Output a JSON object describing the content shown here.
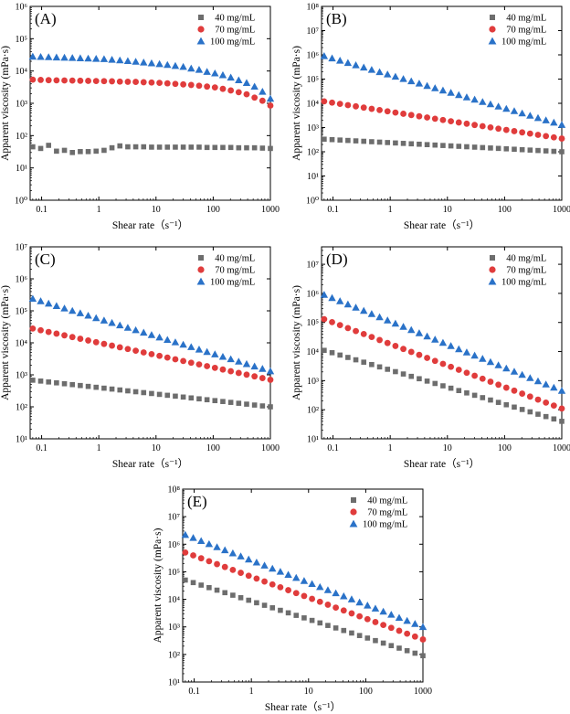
{
  "colors": {
    "s40": "#6d6d6d",
    "s70": "#e03c3c",
    "s100": "#2a72c8"
  },
  "chart_data": [
    {
      "type": "scatter",
      "panel_label": "(A)",
      "xlabel": "Shear rate（s⁻¹）",
      "ylabel": "Apparent viscosity (mPa·s)",
      "xscale": "log",
      "yscale": "log",
      "xlim": [
        0.063,
        1000
      ],
      "ylim_exp": [
        0,
        6
      ],
      "xticks": [
        {
          "v": 0.1,
          "label": "0.1"
        },
        {
          "v": 1,
          "label": "1"
        },
        {
          "v": 10,
          "label": "10"
        },
        {
          "v": 100,
          "label": "100"
        },
        {
          "v": 1000,
          "label": "1000"
        }
      ],
      "x_range": [
        0.07,
        1000
      ],
      "n_points": 31,
      "series": [
        {
          "name": "40 mg/mL",
          "marker": "square",
          "values": [
            45,
            40,
            50,
            33,
            35,
            30,
            32,
            32,
            33,
            35,
            42,
            48,
            45,
            45,
            45,
            44,
            44,
            44,
            44,
            44,
            44,
            44,
            43,
            43,
            43,
            43,
            42,
            42,
            42,
            41,
            40
          ]
        },
        {
          "name": "70 mg/mL",
          "marker": "circle",
          "values": [
            5400,
            5300,
            5200,
            5150,
            5100,
            5050,
            5000,
            4950,
            4900,
            4850,
            4800,
            4700,
            4650,
            4600,
            4500,
            4400,
            4300,
            4150,
            4000,
            3850,
            3700,
            3500,
            3300,
            3100,
            2800,
            2500,
            2200,
            1900,
            1500,
            1200,
            850
          ]
        },
        {
          "name": "100 mg/mL",
          "marker": "triangle",
          "values": [
            28000,
            27500,
            27000,
            26500,
            26000,
            25500,
            25000,
            24500,
            24000,
            23500,
            22500,
            21500,
            20500,
            19500,
            18500,
            17500,
            16500,
            15500,
            14500,
            13500,
            12000,
            11000,
            9500,
            8500,
            7500,
            6300,
            5200,
            4300,
            3300,
            2300,
            1400
          ]
        }
      ]
    },
    {
      "type": "scatter",
      "panel_label": "(B)",
      "xlabel": "Shear rate（s⁻¹）",
      "ylabel": "Apparent viscosity (mPa·s)",
      "xscale": "log",
      "yscale": "log",
      "xlim": [
        0.063,
        1000
      ],
      "ylim_exp": [
        0,
        8
      ],
      "xticks": [
        {
          "v": 0.1,
          "label": "0.1"
        },
        {
          "v": 1,
          "label": "1"
        },
        {
          "v": 10,
          "label": "10"
        },
        {
          "v": 100,
          "label": "100"
        },
        {
          "v": 1000,
          "label": "1000"
        }
      ],
      "x_range": [
        0.07,
        1000
      ],
      "n_points": 31,
      "power_law": true,
      "series": [
        {
          "name": "40 mg/mL",
          "marker": "square",
          "start": 330,
          "end": 100
        },
        {
          "name": "70 mg/mL",
          "marker": "circle",
          "start": 12000,
          "end": 350
        },
        {
          "name": "100 mg/mL",
          "marker": "triangle",
          "start": 900000,
          "end": 1300
        }
      ]
    },
    {
      "type": "scatter",
      "panel_label": "(C)",
      "xlabel": "Shear rate（s⁻¹）",
      "ylabel": "Apparent viscosity (mPa·s)",
      "xscale": "log",
      "yscale": "log",
      "xlim": [
        0.063,
        1000
      ],
      "ylim_exp": [
        1,
        7
      ],
      "xticks": [
        {
          "v": 0.1,
          "label": "0.1"
        },
        {
          "v": 1,
          "label": "1"
        },
        {
          "v": 10,
          "label": "10"
        },
        {
          "v": 100,
          "label": "100"
        },
        {
          "v": 1000,
          "label": "1000"
        }
      ],
      "x_range": [
        0.07,
        1000
      ],
      "n_points": 31,
      "power_law": true,
      "series": [
        {
          "name": "40 mg/mL",
          "marker": "square",
          "start": 680,
          "end": 100
        },
        {
          "name": "70 mg/mL",
          "marker": "circle",
          "start": 28000,
          "end": 700
        },
        {
          "name": "100 mg/mL",
          "marker": "triangle",
          "start": 240000,
          "end": 1300
        }
      ]
    },
    {
      "type": "scatter",
      "panel_label": "(D)",
      "xlabel": "Shear rate（s⁻¹）",
      "ylabel": "Apparent viscosity (mPa·s)",
      "xscale": "log",
      "yscale": "log",
      "xlim": [
        0.063,
        1000
      ],
      "ylim_exp": [
        1,
        7.6
      ],
      "xticks": [
        {
          "v": 0.1,
          "label": "0.1"
        },
        {
          "v": 1,
          "label": "1"
        },
        {
          "v": 10,
          "label": "10"
        },
        {
          "v": 100,
          "label": "100"
        },
        {
          "v": 1000,
          "label": "1000"
        }
      ],
      "x_range": [
        0.07,
        1000
      ],
      "n_points": 31,
      "power_law": true,
      "series": [
        {
          "name": "40 mg/mL",
          "marker": "square",
          "start": 11000,
          "end": 40
        },
        {
          "name": "70 mg/mL",
          "marker": "circle",
          "start": 130000,
          "end": 110
        },
        {
          "name": "100 mg/mL",
          "marker": "triangle",
          "start": 900000,
          "end": 450
        }
      ]
    },
    {
      "type": "scatter",
      "panel_label": "(E)",
      "xlabel": "Shear rate（s⁻¹）",
      "ylabel": "Apparent viscosity (mPa·s)",
      "xscale": "log",
      "yscale": "log",
      "xlim": [
        0.063,
        1000
      ],
      "ylim_exp": [
        1,
        8
      ],
      "xticks": [
        {
          "v": 0.1,
          "label": "0.1"
        },
        {
          "v": 1,
          "label": "1"
        },
        {
          "v": 10,
          "label": "10"
        },
        {
          "v": 100,
          "label": "100"
        },
        {
          "v": 1000,
          "label": "1000"
        }
      ],
      "x_range": [
        0.07,
        1000
      ],
      "n_points": 31,
      "power_law": true,
      "series": [
        {
          "name": "40 mg/mL",
          "marker": "square",
          "start": 50000,
          "end": 90
        },
        {
          "name": "70 mg/mL",
          "marker": "circle",
          "start": 500000,
          "end": 350
        },
        {
          "name": "100 mg/mL",
          "marker": "triangle",
          "start": 2200000,
          "end": 1000
        }
      ]
    }
  ]
}
